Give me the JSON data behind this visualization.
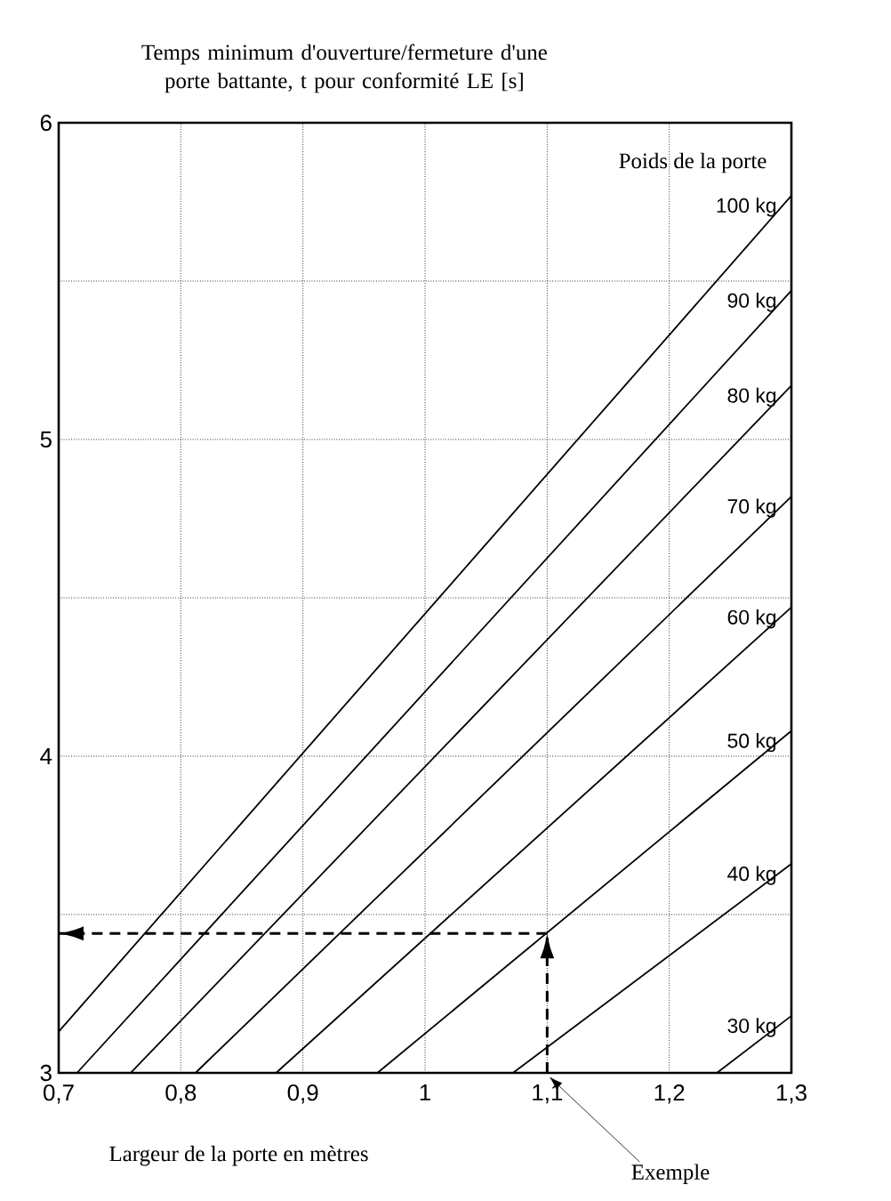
{
  "chart_data": {
    "type": "line",
    "ylabel": "Temps minimum d'ouverture/fermeture d'une porte battante, t pour conformité LE [s]",
    "xlabel": "Largeur de la porte en mètres",
    "legend_title": "Poids de la porte",
    "xlim": [
      0.7,
      1.3
    ],
    "ylim": [
      3,
      6
    ],
    "xticks": [
      {
        "value": 0.7,
        "label": "0,7"
      },
      {
        "value": 0.8,
        "label": "0,8"
      },
      {
        "value": 0.9,
        "label": "0,9"
      },
      {
        "value": 1,
        "label": "1"
      },
      {
        "value": 1.1,
        "label": "1,1"
      },
      {
        "value": 1.2,
        "label": "1,2"
      },
      {
        "value": 1.3,
        "label": "1,3"
      }
    ],
    "yticks": [
      3,
      {
        "value": 3.5,
        "label": null
      },
      4,
      {
        "value": 4.5,
        "label": null
      },
      5,
      {
        "value": 5.5,
        "label": null
      },
      6
    ],
    "grid": true,
    "series": [
      {
        "name": "100 kg",
        "color": "#000000",
        "x": [
          0.7,
          1.3
        ],
        "values": [
          3.13,
          5.77
        ]
      },
      {
        "name": "90 kg",
        "color": "#000000",
        "x": [
          0.715,
          1.3
        ],
        "values": [
          3,
          5.47
        ]
      },
      {
        "name": "80 kg",
        "color": "#000000",
        "x": [
          0.759,
          1.3
        ],
        "values": [
          3,
          5.17
        ]
      },
      {
        "name": "70 kg",
        "color": "#000000",
        "x": [
          0.812,
          1.3
        ],
        "values": [
          3,
          4.82
        ]
      },
      {
        "name": "60 kg",
        "color": "#000000",
        "x": [
          0.878,
          1.3
        ],
        "values": [
          3,
          4.47
        ]
      },
      {
        "name": "50 kg",
        "color": "#000000",
        "x": [
          0.961,
          1.3
        ],
        "values": [
          3,
          4.08
        ]
      },
      {
        "name": "40 kg",
        "color": "#000000",
        "x": [
          1.072,
          1.3
        ],
        "values": [
          3,
          3.66
        ]
      },
      {
        "name": "30 kg",
        "color": "#000000",
        "x": [
          1.239,
          1.3
        ],
        "values": [
          3,
          3.18
        ]
      },
      {
        "color": "#000000",
        "line_style": "dashed",
        "x": [
          1.1,
          1.1
        ],
        "values": [
          3,
          3.44
        ]
      },
      {
        "color": "#000000",
        "line_style": "dashed",
        "x": [
          1.1,
          0.7
        ],
        "values": [
          3.44,
          3.44
        ]
      }
    ],
    "annotations": [
      "Exemple"
    ]
  }
}
